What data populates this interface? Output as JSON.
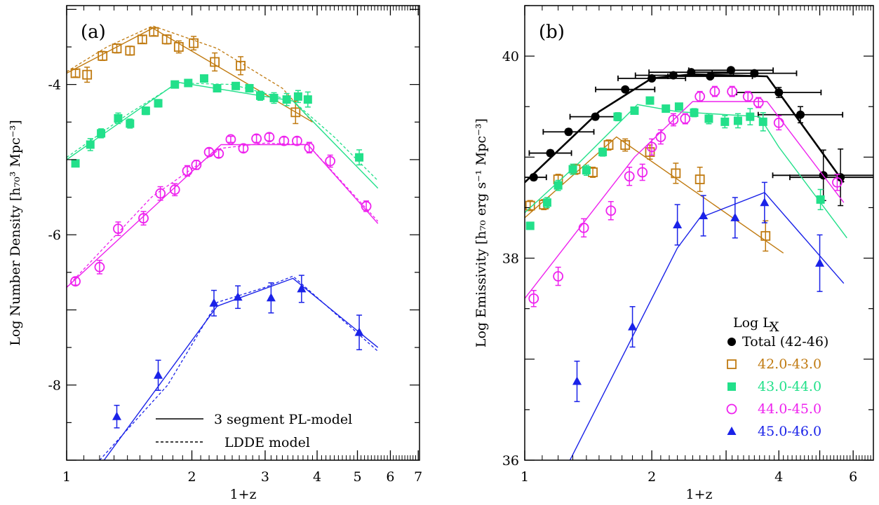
{
  "chart_data": [
    {
      "type": "scatter",
      "panel_label": "(a)",
      "xlabel": "1+z",
      "ylabel": "Log Number Density [h₇₀³ Mpc⁻³]",
      "xscale": "log",
      "xlim": [
        1,
        7.05
      ],
      "ylim": [
        -9.0,
        -2.95
      ],
      "x_ticks": [
        1,
        2,
        3,
        4,
        5,
        6,
        7
      ],
      "y_ticks": [
        -4,
        -6,
        -8
      ],
      "legend": {
        "placement": "bottom-right",
        "entries": [
          "3 segment PL-model",
          "LDDE model"
        ]
      },
      "series": [
        {
          "color": "#c07a10",
          "marker": "open-square",
          "points": [
            [
              1.05,
              -3.85,
              0.05
            ],
            [
              1.12,
              -3.87,
              0.1
            ],
            [
              1.22,
              -3.62,
              0.06
            ],
            [
              1.32,
              -3.52,
              0.06
            ],
            [
              1.42,
              -3.55,
              0.06
            ],
            [
              1.52,
              -3.4,
              0.05
            ],
            [
              1.62,
              -3.3,
              0.05
            ],
            [
              1.74,
              -3.4,
              0.06
            ],
            [
              1.86,
              -3.5,
              0.08
            ],
            [
              2.02,
              -3.45,
              0.09
            ],
            [
              2.27,
              -3.7,
              0.12
            ],
            [
              2.62,
              -3.75,
              0.12
            ],
            [
              3.55,
              -4.37,
              0.15
            ]
          ],
          "model_pl": [
            [
              1.0,
              -3.85
            ],
            [
              1.61,
              -3.25
            ],
            [
              3.9,
              -4.5
            ]
          ],
          "model_ldde": [
            [
              1.0,
              -3.83
            ],
            [
              1.25,
              -3.5
            ],
            [
              1.61,
              -3.22
            ],
            [
              2.3,
              -3.52
            ],
            [
              3.3,
              -4.05
            ],
            [
              3.9,
              -4.5
            ]
          ]
        },
        {
          "color": "#22e08a",
          "marker": "filled-square",
          "points": [
            [
              1.05,
              -5.05,
              0.03
            ],
            [
              1.14,
              -4.8,
              0.08
            ],
            [
              1.21,
              -4.65,
              0.06
            ],
            [
              1.33,
              -4.45,
              0.07
            ],
            [
              1.42,
              -4.52,
              0.06
            ],
            [
              1.55,
              -4.35,
              0.05
            ],
            [
              1.66,
              -4.25,
              0.05
            ],
            [
              1.82,
              -4.0,
              0.03
            ],
            [
              1.96,
              -3.98,
              0.03
            ],
            [
              2.14,
              -3.92,
              0.03
            ],
            [
              2.3,
              -4.05,
              0.03
            ],
            [
              2.55,
              -4.02,
              0.04
            ],
            [
              2.75,
              -4.05,
              0.05
            ],
            [
              2.92,
              -4.15,
              0.06
            ],
            [
              3.15,
              -4.18,
              0.07
            ],
            [
              3.38,
              -4.2,
              0.08
            ],
            [
              3.6,
              -4.16,
              0.08
            ],
            [
              3.8,
              -4.2,
              0.1
            ],
            [
              5.05,
              -4.97,
              0.1
            ]
          ],
          "model_pl": [
            [
              1.0,
              -5.0
            ],
            [
              1.85,
              -3.97
            ],
            [
              3.5,
              -4.22
            ],
            [
              5.6,
              -5.38
            ]
          ],
          "model_ldde": [
            [
              1.0,
              -4.97
            ],
            [
              1.4,
              -4.4
            ],
            [
              1.85,
              -3.98
            ],
            [
              2.5,
              -4.0
            ],
            [
              3.5,
              -4.22
            ],
            [
              4.4,
              -4.7
            ],
            [
              5.6,
              -5.28
            ]
          ]
        },
        {
          "color": "#ee22ee",
          "marker": "open-circle",
          "points": [
            [
              1.05,
              -6.62,
              0.05
            ],
            [
              1.2,
              -6.43,
              0.09
            ],
            [
              1.33,
              -5.92,
              0.09
            ],
            [
              1.53,
              -5.78,
              0.09
            ],
            [
              1.68,
              -5.45,
              0.09
            ],
            [
              1.82,
              -5.4,
              0.08
            ],
            [
              1.95,
              -5.15,
              0.07
            ],
            [
              2.05,
              -5.07,
              0.06
            ],
            [
              2.2,
              -4.9,
              0.05
            ],
            [
              2.32,
              -4.92,
              0.05
            ],
            [
              2.48,
              -4.73,
              0.04
            ],
            [
              2.66,
              -4.85,
              0.05
            ],
            [
              2.86,
              -4.72,
              0.05
            ],
            [
              3.07,
              -4.7,
              0.05
            ],
            [
              3.33,
              -4.75,
              0.05
            ],
            [
              3.58,
              -4.75,
              0.05
            ],
            [
              3.83,
              -4.84,
              0.07
            ],
            [
              4.3,
              -5.02,
              0.08
            ],
            [
              5.25,
              -5.62,
              0.07
            ]
          ],
          "model_pl": [
            [
              1.0,
              -6.7
            ],
            [
              2.35,
              -4.8
            ],
            [
              3.8,
              -4.8
            ],
            [
              5.6,
              -5.85
            ]
          ],
          "model_ldde": [
            [
              1.0,
              -6.7
            ],
            [
              1.6,
              -5.5
            ],
            [
              2.35,
              -4.85
            ],
            [
              3.0,
              -4.78
            ],
            [
              3.8,
              -4.8
            ],
            [
              5.6,
              -5.82
            ]
          ]
        },
        {
          "color": "#1a22e8",
          "marker": "filled-triangle",
          "points": [
            [
              1.32,
              -8.42,
              0.15
            ],
            [
              1.66,
              -7.87,
              0.2
            ],
            [
              2.26,
              -6.91,
              0.17
            ],
            [
              2.58,
              -6.83,
              0.15
            ],
            [
              3.1,
              -6.84,
              0.2
            ],
            [
              3.67,
              -6.72,
              0.18
            ],
            [
              5.05,
              -7.3,
              0.23
            ]
          ],
          "model_pl": [
            [
              1.23,
              -9.0
            ],
            [
              2.3,
              -6.95
            ],
            [
              3.5,
              -6.58
            ],
            [
              5.6,
              -7.5
            ]
          ],
          "model_ldde": [
            [
              1.2,
              -9.0
            ],
            [
              1.75,
              -8.0
            ],
            [
              2.3,
              -6.9
            ],
            [
              3.0,
              -6.7
            ],
            [
              3.5,
              -6.55
            ],
            [
              5.6,
              -7.55
            ]
          ]
        }
      ]
    },
    {
      "type": "scatter",
      "panel_label": "(b)",
      "xlabel": "1+z",
      "ylabel": "Log Emissivity [h₇₀ erg s⁻¹ Mpc⁻³]",
      "xscale": "log",
      "xlim": [
        1,
        6.7
      ],
      "ylim": [
        36,
        40.5
      ],
      "x_ticks": [
        1,
        2,
        4,
        6
      ],
      "y_ticks": [
        36,
        38,
        40
      ],
      "legend": {
        "placement": "bottom-right",
        "title_parts": [
          "Log L",
          "X"
        ],
        "entries": [
          "Total (42-46)",
          "42.0-43.0",
          "43.0-44.0",
          "44.0-45.0",
          "45.0-46.0"
        ]
      },
      "series": [
        {
          "name": "Total (42-46)",
          "color": "#000000",
          "marker": "filled-circle",
          "points": [
            [
              1.05,
              38.8,
              0.03,
              0.03
            ],
            [
              1.15,
              39.04,
              0.03,
              0.05
            ],
            [
              1.27,
              39.25,
              0.03,
              0.06
            ],
            [
              1.47,
              39.4,
              0.03,
              0.06
            ],
            [
              1.73,
              39.67,
              0.02,
              0.07
            ],
            [
              2.0,
              39.78,
              0.02,
              0.08
            ],
            [
              2.25,
              39.81,
              0.02,
              0.09
            ],
            [
              2.48,
              39.84,
              0.02,
              0.1
            ],
            [
              2.75,
              39.8,
              0.02,
              0.1
            ],
            [
              3.08,
              39.86,
              0.02,
              0.1
            ],
            [
              3.5,
              39.83,
              0.03,
              0.1
            ],
            [
              4.0,
              39.64,
              0.05,
              0.1
            ],
            [
              4.5,
              39.42,
              0.08,
              0.1
            ],
            [
              5.1,
              38.82,
              0.25,
              0.12
            ],
            [
              5.6,
              38.8,
              0.28,
              0.12
            ]
          ],
          "model": [
            [
              1.0,
              38.75
            ],
            [
              1.5,
              39.45
            ],
            [
              2.0,
              39.78
            ],
            [
              2.5,
              39.82
            ],
            [
              3.75,
              39.8
            ],
            [
              5.7,
              38.75
            ]
          ]
        },
        {
          "name": "42.0-43.0",
          "color": "#c07a10",
          "marker": "open-square",
          "points": [
            [
              1.03,
              38.52,
              0.05
            ],
            [
              1.11,
              38.53,
              0.05
            ],
            [
              1.2,
              38.78,
              0.05
            ],
            [
              1.32,
              38.88,
              0.05
            ],
            [
              1.45,
              38.85,
              0.05
            ],
            [
              1.58,
              39.12,
              0.05
            ],
            [
              1.73,
              39.12,
              0.06
            ],
            [
              1.98,
              39.05,
              0.07
            ],
            [
              2.28,
              38.84,
              0.1
            ],
            [
              2.6,
              38.78,
              0.12
            ],
            [
              3.72,
              38.22,
              0.15
            ]
          ],
          "model": [
            [
              1.0,
              38.4
            ],
            [
              1.65,
              39.2
            ],
            [
              4.1,
              38.05
            ]
          ]
        },
        {
          "name": "43.0-44.0",
          "color": "#22e08a",
          "marker": "filled-square",
          "points": [
            [
              1.03,
              38.32,
              0.03
            ],
            [
              1.13,
              38.55,
              0.05
            ],
            [
              1.2,
              38.72,
              0.05
            ],
            [
              1.3,
              38.88,
              0.05
            ],
            [
              1.4,
              38.87,
              0.05
            ],
            [
              1.53,
              39.05,
              0.04
            ],
            [
              1.66,
              39.4,
              0.04
            ],
            [
              1.82,
              39.46,
              0.03
            ],
            [
              1.98,
              39.56,
              0.03
            ],
            [
              2.16,
              39.48,
              0.03
            ],
            [
              2.32,
              39.5,
              0.03
            ],
            [
              2.52,
              39.44,
              0.04
            ],
            [
              2.73,
              39.38,
              0.05
            ],
            [
              2.98,
              39.35,
              0.06
            ],
            [
              3.2,
              39.36,
              0.07
            ],
            [
              3.42,
              39.4,
              0.08
            ],
            [
              3.67,
              39.35,
              0.09
            ],
            [
              5.02,
              38.58,
              0.1
            ]
          ],
          "model": [
            [
              1.0,
              38.45
            ],
            [
              1.35,
              38.95
            ],
            [
              1.85,
              39.52
            ],
            [
              2.3,
              39.45
            ],
            [
              3.6,
              39.4
            ],
            [
              4.0,
              39.1
            ],
            [
              5.8,
              38.2
            ]
          ]
        },
        {
          "name": "44.0-45.0",
          "color": "#ee22ee",
          "marker": "open-circle",
          "points": [
            [
              1.05,
              37.6,
              0.08
            ],
            [
              1.2,
              37.82,
              0.09
            ],
            [
              1.38,
              38.3,
              0.09
            ],
            [
              1.6,
              38.47,
              0.09
            ],
            [
              1.77,
              38.81,
              0.09
            ],
            [
              1.9,
              38.85,
              0.08
            ],
            [
              2.0,
              39.1,
              0.08
            ],
            [
              2.1,
              39.2,
              0.07
            ],
            [
              2.25,
              39.37,
              0.06
            ],
            [
              2.4,
              39.38,
              0.05
            ],
            [
              2.6,
              39.6,
              0.05
            ],
            [
              2.82,
              39.65,
              0.05
            ],
            [
              3.1,
              39.65,
              0.05
            ],
            [
              3.38,
              39.6,
              0.05
            ],
            [
              3.58,
              39.54,
              0.05
            ],
            [
              4.0,
              39.34,
              0.07
            ],
            [
              5.5,
              38.75,
              0.08
            ]
          ],
          "model": [
            [
              1.0,
              37.6
            ],
            [
              1.82,
              39.0
            ],
            [
              2.5,
              39.55
            ],
            [
              3.75,
              39.55
            ],
            [
              5.7,
              38.55
            ]
          ]
        },
        {
          "name": "45.0-46.0",
          "color": "#1a22e8",
          "marker": "filled-triangle",
          "points": [
            [
              1.33,
              36.78,
              0.2
            ],
            [
              1.8,
              37.32,
              0.2
            ],
            [
              2.3,
              38.33,
              0.2
            ],
            [
              2.65,
              38.42,
              0.2
            ],
            [
              3.15,
              38.4,
              0.2
            ],
            [
              3.7,
              38.55,
              0.2
            ],
            [
              5.0,
              37.95,
              0.28
            ]
          ],
          "model": [
            [
              1.28,
              36.0
            ],
            [
              2.3,
              38.1
            ],
            [
              2.6,
              38.4
            ],
            [
              3.7,
              38.65
            ],
            [
              5.7,
              37.75
            ]
          ]
        }
      ]
    }
  ]
}
